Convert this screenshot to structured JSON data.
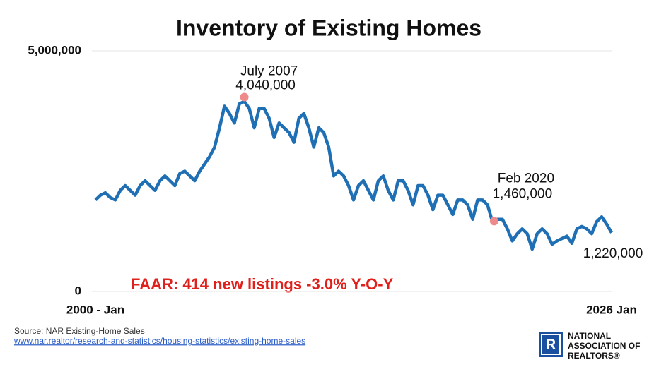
{
  "chart_data": {
    "type": "line",
    "title": "Inventory of Existing Homes",
    "categories": [
      "2000 - Jan",
      null,
      null,
      null,
      null,
      null,
      null,
      null,
      null,
      null,
      null,
      null,
      null,
      null,
      null,
      null,
      null,
      null,
      null,
      null,
      null,
      null,
      null,
      null,
      null,
      null,
      null,
      null,
      null,
      null,
      null,
      null,
      null,
      null,
      null,
      null,
      null,
      null,
      null,
      null,
      null,
      null,
      null,
      null,
      null,
      null,
      null,
      null,
      null,
      null,
      null,
      null,
      null,
      null,
      null,
      null,
      null,
      null,
      null,
      null,
      null,
      null,
      null,
      null,
      null,
      null,
      null,
      null,
      null,
      null,
      null,
      null,
      null,
      null,
      null,
      null,
      null,
      null,
      null,
      null,
      null,
      null,
      null,
      null,
      null,
      null,
      null,
      null,
      null,
      null,
      null,
      null,
      null,
      null,
      null,
      null,
      null,
      null,
      null,
      null,
      null,
      null,
      null,
      null,
      "2026 Jan"
    ],
    "values": [
      1900000,
      2000000,
      2050000,
      1950000,
      1900000,
      2100000,
      2200000,
      2100000,
      2000000,
      2200000,
      2300000,
      2200000,
      2100000,
      2300000,
      2400000,
      2300000,
      2200000,
      2450000,
      2500000,
      2400000,
      2300000,
      2500000,
      2650000,
      2800000,
      3000000,
      3400000,
      3850000,
      3700000,
      3500000,
      3900000,
      3950000,
      3800000,
      3400000,
      3800000,
      3800000,
      3600000,
      3200000,
      3500000,
      3400000,
      3300000,
      3100000,
      3600000,
      3700000,
      3400000,
      3000000,
      3400000,
      3300000,
      3000000,
      2400000,
      2500000,
      2400000,
      2200000,
      1900000,
      2200000,
      2300000,
      2100000,
      1900000,
      2300000,
      2400000,
      2100000,
      1900000,
      2300000,
      2300000,
      2100000,
      1800000,
      2200000,
      2200000,
      2000000,
      1700000,
      2000000,
      2000000,
      1800000,
      1600000,
      1900000,
      1900000,
      1800000,
      1500000,
      1900000,
      1900000,
      1800000,
      1450000,
      1500000,
      1500000,
      1300000,
      1050000,
      1200000,
      1300000,
      1200000,
      880000,
      1200000,
      1300000,
      1200000,
      980000,
      1050000,
      1100000,
      1150000,
      1000000,
      1300000,
      1350000,
      1300000,
      1200000,
      1450000,
      1550000,
      1400000,
      1220000
    ],
    "color": "#1f6fb5",
    "ylim": [
      0,
      5000000
    ],
    "yticks": [
      0,
      {
        "value": 5000000,
        "label": "5,000,000"
      }
    ],
    "grid": true,
    "annotations": [
      {
        "text": "July 2007",
        "value": 4040000,
        "label": "4,040,000"
      },
      {
        "text": "Feb 2020",
        "value": 1460000,
        "label": "1,460,000"
      },
      {
        "value": 1220000,
        "label": "1,220,000"
      }
    ],
    "note": "FAAR: 414 new listings -3.0% Y-O-Y"
  },
  "footer": {
    "source": "Source: NAR Existing-Home Sales",
    "link": "www.nar.realtor/research-and-statistics/housing-statistics/existing-home-sales",
    "logo_letter": "R",
    "logo_lines": [
      "NATIONAL",
      "ASSOCIATION OF",
      "REALTORS®"
    ]
  }
}
